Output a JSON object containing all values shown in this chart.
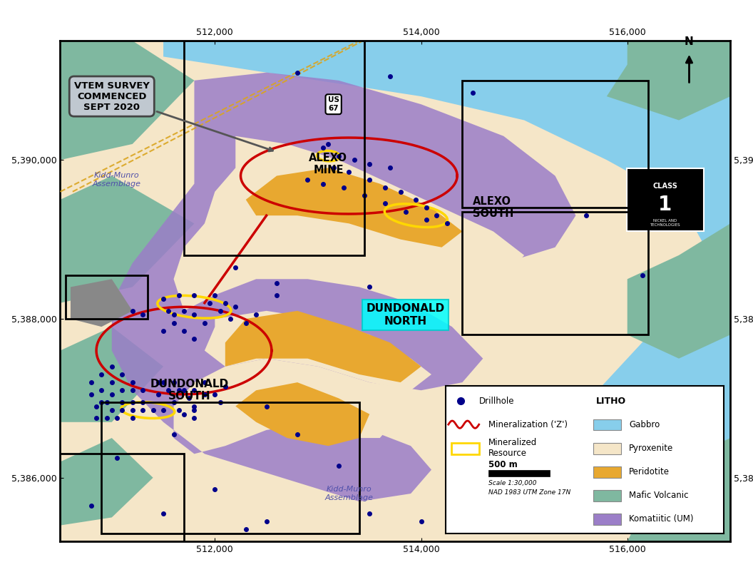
{
  "xlim": [
    510500,
    517000
  ],
  "ylim": [
    5385200,
    5391500
  ],
  "xticks": [
    512000,
    514000,
    516000
  ],
  "yticks": [
    5386000,
    5388000,
    5390000
  ],
  "litho_colors": {
    "gabbro": "#87CEEB",
    "pyroxenite": "#F5E6C8",
    "peridotite": "#E8A830",
    "mafic_volcanic": "#7FB8A0",
    "komatiitic": "#9B7EC8"
  },
  "drillhole_color": "#00008B",
  "mineralization_color": "#CC0000",
  "resource_ellipse_color": "#FFD700",
  "survey_text": "VTEM SURVEY\nCOMMENCED\nSEPT 2020"
}
